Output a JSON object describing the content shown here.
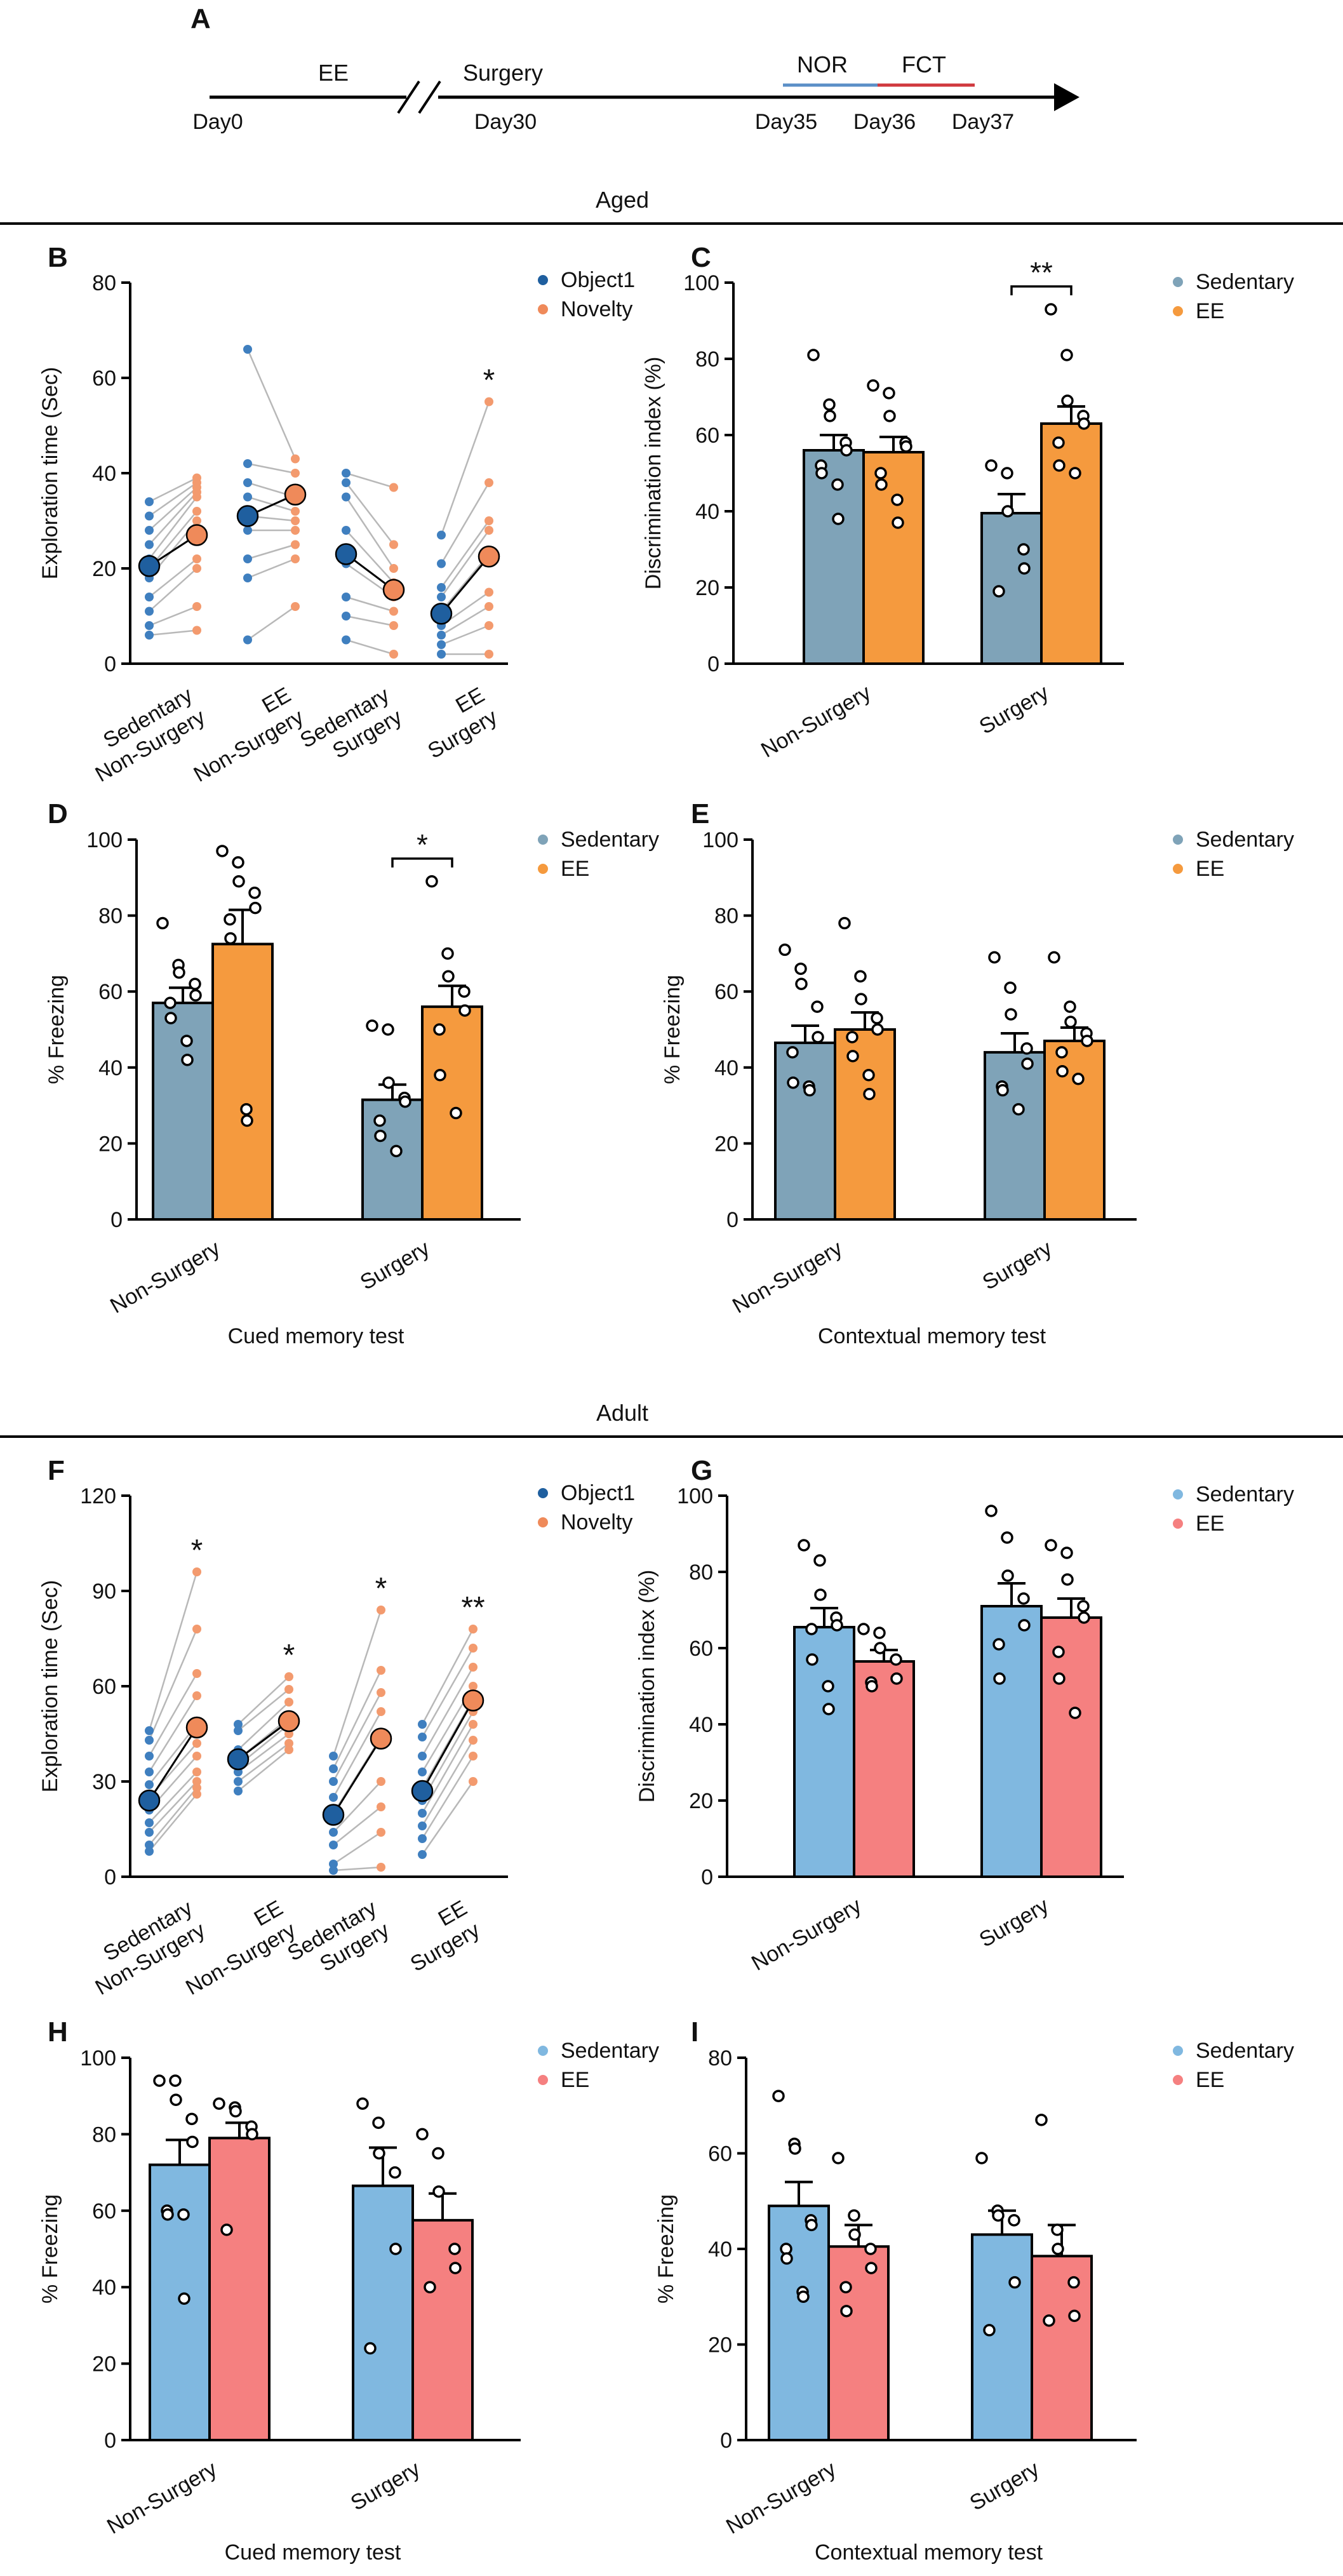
{
  "colors": {
    "aged_sedentary": "#7fa3b8",
    "aged_ee": "#f59a3e",
    "adult_sedentary": "#80b8e0",
    "adult_ee": "#f58080",
    "object1": "#1f5f9f",
    "novelty": "#ef8a5a",
    "object1_light": "#3f7fbf",
    "novelty_light": "#f39a6e",
    "nor_bar": "#5b8fc7",
    "fct_bar": "#d0383e",
    "line_gray": "#b8b8b8"
  },
  "sections": {
    "aged": "Aged",
    "adult": "Adult"
  },
  "timeline": {
    "panel": "A",
    "ee_label": "EE",
    "surgery_label": "Surgery",
    "nor_label": "NOR",
    "fct_label": "FCT",
    "day_labels": [
      "Day0",
      "Day30",
      "Day35",
      "Day36",
      "Day37"
    ]
  },
  "chart_data": [
    {
      "panel": "B",
      "type": "scatter",
      "ylabel": "Exploration time (Sec)",
      "ylim": [
        0,
        80
      ],
      "yticks": [
        0,
        20,
        40,
        60,
        80
      ],
      "legend": [
        "Object1",
        "Novelty"
      ],
      "categories": [
        "Sedentary\nNon-Surgery",
        "EE\nNon-Surgery",
        "Sedentary\nSurgery",
        "EE\nSurgery"
      ],
      "series": [
        {
          "name": "Object1",
          "means": [
            20.5,
            31,
            23,
            10.5
          ]
        },
        {
          "name": "Novelty",
          "means": [
            27,
            35.5,
            15.5,
            22.5
          ]
        }
      ],
      "pairs": [
        [
          [
            34,
            39
          ],
          [
            31,
            38
          ],
          [
            28,
            37
          ],
          [
            25,
            36
          ],
          [
            22,
            35
          ],
          [
            20,
            32
          ],
          [
            18,
            30
          ],
          [
            14,
            22
          ],
          [
            11,
            20
          ],
          [
            8,
            12
          ],
          [
            6,
            7
          ]
        ],
        [
          [
            66,
            43
          ],
          [
            42,
            40
          ],
          [
            38,
            35
          ],
          [
            35,
            32
          ],
          [
            31,
            30
          ],
          [
            28,
            28
          ],
          [
            22,
            25
          ],
          [
            18,
            22
          ],
          [
            5,
            12
          ]
        ],
        [
          [
            40,
            37
          ],
          [
            38,
            25
          ],
          [
            35,
            20
          ],
          [
            28,
            17
          ],
          [
            21,
            14
          ],
          [
            14,
            11
          ],
          [
            10,
            8
          ],
          [
            5,
            2
          ]
        ],
        [
          [
            27,
            55
          ],
          [
            21,
            38
          ],
          [
            16,
            30
          ],
          [
            14,
            28
          ],
          [
            11,
            23
          ],
          [
            8,
            15
          ],
          [
            6,
            12
          ],
          [
            4,
            8
          ],
          [
            2,
            2
          ]
        ]
      ],
      "annotations": [
        {
          "group": 3,
          "text": "*"
        }
      ]
    },
    {
      "panel": "C",
      "type": "bar",
      "ylabel": "Discrimination index (%)",
      "ylim": [
        0,
        100
      ],
      "yticks": [
        0,
        20,
        40,
        60,
        80,
        100
      ],
      "legend": [
        "Sedentary",
        "EE"
      ],
      "categories": [
        "Non-Surgery",
        "Surgery"
      ],
      "series": [
        {
          "name": "Sedentary",
          "values": [
            56,
            39.5
          ],
          "sem": [
            4,
            5
          ],
          "points": [
            [
              81,
              68,
              65,
              58,
              56,
              52,
              50,
              47,
              38
            ],
            [
              52,
              50,
              40,
              30,
              25,
              19
            ]
          ]
        },
        {
          "name": "EE",
          "values": [
            55.5,
            63
          ],
          "sem": [
            4,
            4.5
          ],
          "points": [
            [
              73,
              71,
              65,
              58,
              57,
              50,
              47,
              43,
              37
            ],
            [
              93,
              81,
              69,
              65,
              63,
              58,
              52,
              50
            ]
          ]
        }
      ],
      "annotations": [
        {
          "group": 1,
          "text": "**"
        }
      ]
    },
    {
      "panel": "D",
      "type": "bar",
      "ylabel": "% Freezing",
      "ylim": [
        0,
        100
      ],
      "yticks": [
        0,
        20,
        40,
        60,
        80,
        100
      ],
      "legend": [
        "Sedentary",
        "EE"
      ],
      "categories": [
        "Non-Surgery",
        "Surgery"
      ],
      "series": [
        {
          "name": "Sedentary",
          "values": [
            57,
            31.5
          ],
          "sem": [
            4,
            4
          ],
          "points": [
            [
              78,
              67,
              65,
              62,
              59,
              57,
              53,
              47,
              42
            ],
            [
              51,
              50,
              36,
              32,
              31,
              26,
              22,
              18
            ]
          ]
        },
        {
          "name": "EE",
          "values": [
            72.5,
            56
          ],
          "sem": [
            9,
            5.5
          ],
          "points": [
            [
              97,
              94,
              89,
              86,
              82,
              79,
              74,
              29,
              26
            ],
            [
              89,
              70,
              64,
              60,
              55,
              50,
              38,
              28
            ]
          ]
        }
      ],
      "annotations": [
        {
          "group": 1,
          "text": "*"
        }
      ],
      "xlabel": "Cued memory test"
    },
    {
      "panel": "E",
      "type": "bar",
      "ylabel": "% Freezing",
      "ylim": [
        0,
        100
      ],
      "yticks": [
        0,
        20,
        40,
        60,
        80,
        100
      ],
      "legend": [
        "Sedentary",
        "EE"
      ],
      "categories": [
        "Non-Surgery",
        "Surgery"
      ],
      "series": [
        {
          "name": "Sedentary",
          "values": [
            46.5,
            44
          ],
          "sem": [
            4.5,
            5
          ],
          "points": [
            [
              71,
              66,
              62,
              56,
              48,
              44,
              36,
              35,
              34
            ],
            [
              69,
              61,
              54,
              45,
              41,
              35,
              34,
              29
            ]
          ]
        },
        {
          "name": "EE",
          "values": [
            50,
            47
          ],
          "sem": [
            4.5,
            3.5
          ],
          "points": [
            [
              78,
              64,
              58,
              53,
              50,
              48,
              43,
              38,
              33
            ],
            [
              69,
              56,
              52,
              49,
              47,
              44,
              39,
              37
            ]
          ]
        }
      ],
      "annotations": [],
      "xlabel": "Contextual memory test"
    },
    {
      "panel": "F",
      "type": "scatter",
      "ylabel": "Exploration time (Sec)",
      "ylim": [
        0,
        120
      ],
      "yticks": [
        0,
        30,
        60,
        90,
        120
      ],
      "legend": [
        "Object1",
        "Novelty"
      ],
      "categories": [
        "Sedentary\nNon-Surgery",
        "EE\nNon-Surgery",
        "Sedentary\nSurgery",
        "EE\nSurgery"
      ],
      "series": [
        {
          "name": "Object1",
          "means": [
            24,
            37,
            19.5,
            27
          ]
        },
        {
          "name": "Novelty",
          "means": [
            47,
            49,
            43.5,
            55.5
          ]
        }
      ],
      "pairs": [
        [
          [
            46,
            96
          ],
          [
            43,
            78
          ],
          [
            38,
            64
          ],
          [
            33,
            57
          ],
          [
            29,
            48
          ],
          [
            25,
            42
          ],
          [
            21,
            38
          ],
          [
            17,
            33
          ],
          [
            14,
            30
          ],
          [
            10,
            28
          ],
          [
            8,
            26
          ]
        ],
        [
          [
            48,
            63
          ],
          [
            46,
            59
          ],
          [
            40,
            55
          ],
          [
            37,
            50
          ],
          [
            35,
            48
          ],
          [
            33,
            45
          ],
          [
            30,
            42
          ],
          [
            27,
            40
          ]
        ],
        [
          [
            38,
            84
          ],
          [
            34,
            65
          ],
          [
            30,
            58
          ],
          [
            25,
            52
          ],
          [
            20,
            44
          ],
          [
            14,
            30
          ],
          [
            10,
            22
          ],
          [
            4,
            14
          ],
          [
            2,
            3
          ]
        ],
        [
          [
            48,
            78
          ],
          [
            44,
            72
          ],
          [
            38,
            66
          ],
          [
            33,
            60
          ],
          [
            28,
            56
          ],
          [
            24,
            52
          ],
          [
            20,
            48
          ],
          [
            16,
            43
          ],
          [
            12,
            38
          ],
          [
            7,
            30
          ]
        ]
      ],
      "annotations": [
        {
          "group": 0,
          "text": "*"
        },
        {
          "group": 1,
          "text": "*"
        },
        {
          "group": 2,
          "text": "*"
        },
        {
          "group": 3,
          "text": "**"
        }
      ]
    },
    {
      "panel": "G",
      "type": "bar",
      "ylabel": "Discrimination index (%)",
      "ylim": [
        0,
        100
      ],
      "yticks": [
        0,
        20,
        40,
        60,
        80,
        100
      ],
      "legend": [
        "Sedentary",
        "EE"
      ],
      "categories": [
        "Non-Surgery",
        "Surgery"
      ],
      "series": [
        {
          "name": "Sedentary",
          "values": [
            65.5,
            71
          ],
          "sem": [
            5,
            6
          ],
          "points": [
            [
              87,
              83,
              74,
              68,
              66,
              65,
              57,
              50,
              44
            ],
            [
              96,
              89,
              79,
              73,
              66,
              61,
              52
            ]
          ]
        },
        {
          "name": "EE",
          "values": [
            56.5,
            68
          ],
          "sem": [
            3,
            5
          ],
          "points": [
            [
              65,
              64,
              60,
              57,
              52,
              51,
              50
            ],
            [
              87,
              85,
              78,
              71,
              68,
              59,
              52,
              43
            ]
          ]
        }
      ],
      "annotations": []
    },
    {
      "panel": "H",
      "type": "bar",
      "ylabel": "% Freezing",
      "ylim": [
        0,
        100
      ],
      "yticks": [
        0,
        20,
        40,
        60,
        80,
        100
      ],
      "legend": [
        "Sedentary",
        "EE"
      ],
      "categories": [
        "Non-Surgery",
        "Surgery"
      ],
      "series": [
        {
          "name": "Sedentary",
          "values": [
            72,
            66.5
          ],
          "sem": [
            6.5,
            10
          ],
          "points": [
            [
              94,
              94,
              89,
              84,
              78,
              60,
              59,
              59,
              37
            ],
            [
              88,
              83,
              75,
              70,
              50,
              24
            ]
          ]
        },
        {
          "name": "EE",
          "values": [
            79,
            57.5
          ],
          "sem": [
            4,
            7
          ],
          "points": [
            [
              88,
              87,
              86,
              82,
              80,
              55
            ],
            [
              80,
              75,
              65,
              50,
              45,
              40
            ]
          ]
        }
      ],
      "annotations": [],
      "xlabel": "Cued memory test"
    },
    {
      "panel": "I",
      "type": "bar",
      "ylabel": "% Freezing",
      "ylim": [
        0,
        80
      ],
      "yticks": [
        0,
        20,
        40,
        60,
        80
      ],
      "legend": [
        "Sedentary",
        "EE"
      ],
      "categories": [
        "Non-Surgery",
        "Surgery"
      ],
      "series": [
        {
          "name": "Sedentary",
          "values": [
            49,
            43
          ],
          "sem": [
            5,
            5
          ],
          "points": [
            [
              72,
              62,
              61,
              46,
              45,
              40,
              38,
              31,
              30
            ],
            [
              59,
              48,
              47,
              46,
              33,
              23
            ]
          ]
        },
        {
          "name": "EE",
          "values": [
            40.5,
            38.5
          ],
          "sem": [
            4.5,
            6.5
          ],
          "points": [
            [
              59,
              47,
              43,
              40,
              36,
              32,
              27
            ],
            [
              67,
              44,
              40,
              33,
              26,
              25
            ]
          ]
        }
      ],
      "annotations": [],
      "xlabel": "Contextual memory test"
    }
  ]
}
